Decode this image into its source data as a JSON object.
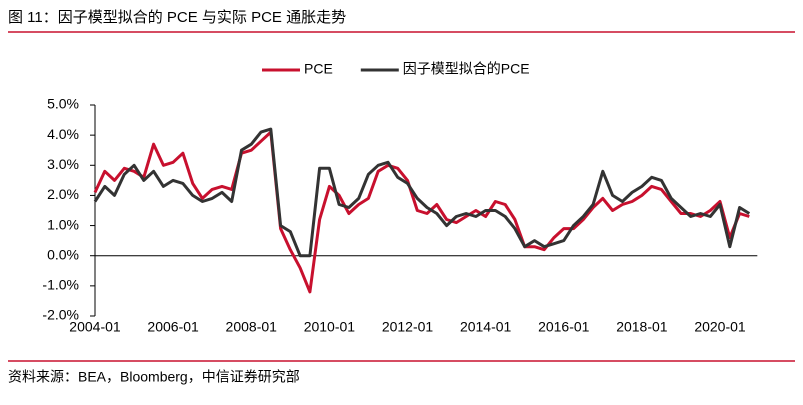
{
  "title": "图 11：因子模型拟合的 PCE 与实际 PCE 通胀走势",
  "source": "资料来源：BEA，Bloomberg，中信证券研究部",
  "chart_data": {
    "type": "line",
    "categories": [
      "2004-01",
      null,
      null,
      null,
      null,
      null,
      null,
      null,
      "2006-01",
      null,
      null,
      null,
      null,
      null,
      null,
      null,
      "2008-01",
      null,
      null,
      null,
      null,
      null,
      null,
      null,
      "2010-01",
      null,
      null,
      null,
      null,
      null,
      null,
      null,
      "2012-01",
      null,
      null,
      null,
      null,
      null,
      null,
      null,
      "2014-01",
      null,
      null,
      null,
      null,
      null,
      null,
      null,
      "2016-01",
      null,
      null,
      null,
      null,
      null,
      null,
      null,
      "2018-01",
      null,
      null,
      null,
      null,
      null,
      null,
      null,
      "2020-01",
      null,
      null,
      null
    ],
    "series": [
      {
        "name": "PCE",
        "color": "#c8102e",
        "values": [
          2.1,
          2.8,
          2.5,
          2.9,
          2.8,
          2.6,
          3.7,
          3.0,
          3.1,
          3.4,
          2.4,
          1.9,
          2.2,
          2.3,
          2.2,
          3.4,
          3.5,
          3.8,
          4.1,
          0.9,
          0.2,
          -0.4,
          -1.2,
          1.2,
          2.3,
          2.0,
          1.4,
          1.7,
          1.9,
          2.8,
          3.0,
          2.9,
          2.5,
          1.5,
          1.4,
          1.7,
          1.2,
          1.1,
          1.3,
          1.5,
          1.3,
          1.8,
          1.7,
          1.2,
          0.3,
          0.3,
          0.2,
          0.6,
          0.9,
          0.9,
          1.2,
          1.6,
          1.9,
          1.5,
          1.7,
          1.8,
          2.0,
          2.3,
          2.2,
          1.8,
          1.4,
          1.4,
          1.3,
          1.5,
          1.8,
          0.6,
          1.4,
          1.3
        ]
      },
      {
        "name": "因子模型拟合的PCE",
        "color": "#333333",
        "values": [
          1.8,
          2.3,
          2.0,
          2.7,
          3.0,
          2.5,
          2.8,
          2.3,
          2.5,
          2.4,
          2.0,
          1.8,
          1.9,
          2.1,
          1.8,
          3.5,
          3.7,
          4.1,
          4.2,
          1.0,
          0.8,
          0.0,
          0.0,
          2.9,
          2.9,
          1.7,
          1.6,
          1.9,
          2.7,
          3.0,
          3.1,
          2.6,
          2.4,
          1.9,
          1.6,
          1.4,
          1.0,
          1.3,
          1.4,
          1.3,
          1.5,
          1.5,
          1.3,
          0.9,
          0.3,
          0.5,
          0.3,
          0.4,
          0.5,
          1.0,
          1.3,
          1.7,
          2.8,
          2.0,
          1.8,
          2.1,
          2.3,
          2.6,
          2.5,
          1.9,
          1.6,
          1.3,
          1.4,
          1.3,
          1.7,
          0.3,
          1.6,
          1.4
        ]
      }
    ],
    "ylim": [
      -2,
      5
    ],
    "yticks": [
      {
        "value": -2,
        "label": "-2.0%"
      },
      {
        "value": -1,
        "label": "-1.0%"
      },
      {
        "value": 0,
        "label": "0.0%"
      },
      {
        "value": 1,
        "label": "1.0%"
      },
      {
        "value": 2,
        "label": "2.0%"
      },
      {
        "value": 3,
        "label": "3.0%"
      },
      {
        "value": 4,
        "label": "4.0%"
      },
      {
        "value": 5,
        "label": "5.0%"
      }
    ],
    "legend": "top"
  }
}
